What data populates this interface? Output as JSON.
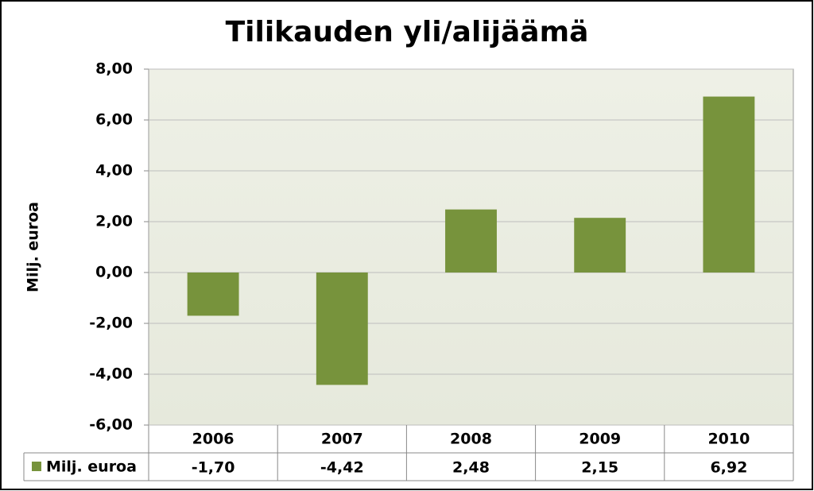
{
  "chart_data": {
    "type": "bar",
    "title": "Tilikauden yli/alijäämä",
    "y_label": "Milj. euroa",
    "categories": [
      "2006",
      "2007",
      "2008",
      "2009",
      "2010"
    ],
    "series": [
      {
        "name": "Milj. euroa",
        "color": "#77933c",
        "values": [
          -1.7,
          -4.42,
          2.48,
          2.15,
          6.92
        ],
        "value_labels": [
          "-1,70",
          "-4,42",
          "2,48",
          "2,15",
          "6,92"
        ]
      }
    ],
    "ylim": [
      -6,
      8
    ],
    "yticks": [
      {
        "value": -6,
        "label": "-6,00"
      },
      {
        "value": -4,
        "label": "-4,00"
      },
      {
        "value": -2,
        "label": "-2,00"
      },
      {
        "value": 0,
        "label": "0,00"
      },
      {
        "value": 2,
        "label": "2,00"
      },
      {
        "value": 4,
        "label": "4,00"
      },
      {
        "value": 6,
        "label": "6,00"
      },
      {
        "value": 8,
        "label": "8,00"
      }
    ],
    "grid": true
  }
}
